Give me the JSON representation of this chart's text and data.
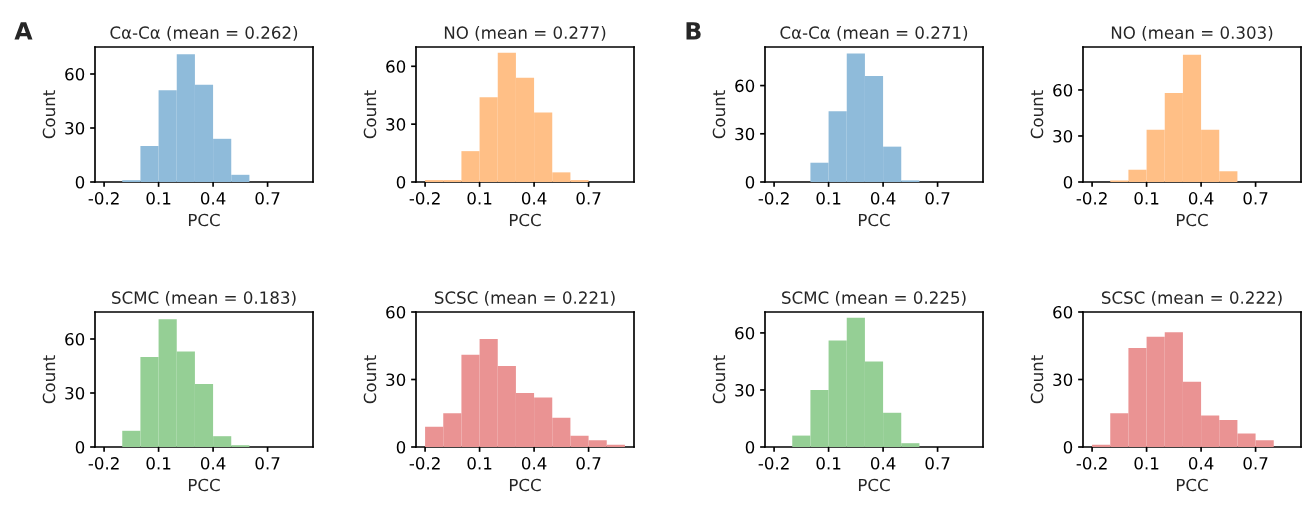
{
  "chart_data": [
    {
      "type": "histogram",
      "title": "Cα-Cα (mean = 0.262)",
      "xlabel": "PCC",
      "ylabel": "Count",
      "annotations": [
        "A"
      ],
      "color": "#8fbbda",
      "bins": [
        -0.1,
        0.0,
        0.1,
        0.2,
        0.3,
        0.4,
        0.5,
        0.6
      ],
      "values": [
        1,
        20,
        51,
        71,
        54,
        24,
        4
      ],
      "xlim": [
        -0.25,
        0.95
      ],
      "ylim": [
        0,
        75
      ],
      "xticks": [
        -0.2,
        0.1,
        0.4,
        0.7
      ],
      "yticks": [
        0,
        30,
        60
      ],
      "grid": false
    },
    {
      "type": "histogram",
      "title": "NO (mean = 0.277)",
      "xlabel": "PCC",
      "ylabel": "Count",
      "color": "#ffbf86",
      "bins": [
        -0.2,
        -0.1,
        0.0,
        0.1,
        0.2,
        0.3,
        0.4,
        0.5,
        0.6,
        0.7
      ],
      "values": [
        1,
        1,
        16,
        44,
        67,
        54,
        36,
        5,
        1
      ],
      "xlim": [
        -0.25,
        0.95
      ],
      "ylim": [
        0,
        70
      ],
      "xticks": [
        -0.2,
        0.1,
        0.4,
        0.7
      ],
      "yticks": [
        0,
        30,
        60
      ],
      "grid": false
    },
    {
      "type": "histogram",
      "title": "Cα-Cα (mean = 0.271)",
      "xlabel": "PCC",
      "ylabel": "Count",
      "annotations": [
        "B"
      ],
      "color": "#8fbbda",
      "bins": [
        0.0,
        0.1,
        0.2,
        0.3,
        0.4,
        0.5,
        0.6
      ],
      "values": [
        12,
        44,
        80,
        66,
        22,
        1
      ],
      "xlim": [
        -0.25,
        0.95
      ],
      "ylim": [
        0,
        84
      ],
      "xticks": [
        -0.2,
        0.1,
        0.4,
        0.7
      ],
      "yticks": [
        0,
        30,
        60
      ],
      "grid": false
    },
    {
      "type": "histogram",
      "title": "NO (mean = 0.303)",
      "xlabel": "PCC",
      "ylabel": "Count",
      "color": "#ffbf86",
      "bins": [
        -0.1,
        0.0,
        0.1,
        0.2,
        0.3,
        0.4,
        0.5,
        0.6
      ],
      "values": [
        1,
        8,
        34,
        58,
        83,
        34,
        7
      ],
      "xlim": [
        -0.25,
        0.95
      ],
      "ylim": [
        0,
        88
      ],
      "xticks": [
        -0.2,
        0.1,
        0.4,
        0.7
      ],
      "yticks": [
        0,
        30,
        60
      ],
      "grid": false
    },
    {
      "type": "histogram",
      "title": "SCMC (mean = 0.183)",
      "xlabel": "PCC",
      "ylabel": "Count",
      "color": "#95cf95",
      "bins": [
        -0.1,
        0.0,
        0.1,
        0.2,
        0.3,
        0.4,
        0.5,
        0.6
      ],
      "values": [
        9,
        50,
        71,
        53,
        35,
        6,
        1
      ],
      "xlim": [
        -0.25,
        0.95
      ],
      "ylim": [
        0,
        75
      ],
      "xticks": [
        -0.2,
        0.1,
        0.4,
        0.7
      ],
      "yticks": [
        0,
        30,
        60
      ],
      "grid": false
    },
    {
      "type": "histogram",
      "title": "SCSC (mean = 0.221)",
      "xlabel": "PCC",
      "ylabel": "Count",
      "color": "#ea9393",
      "bins": [
        -0.2,
        -0.1,
        0.0,
        0.1,
        0.2,
        0.3,
        0.4,
        0.5,
        0.6,
        0.7,
        0.8,
        0.9
      ],
      "values": [
        9,
        15,
        41,
        48,
        36,
        24,
        22,
        13,
        5,
        3,
        1
      ],
      "xlim": [
        -0.25,
        0.95
      ],
      "ylim": [
        0,
        60
      ],
      "xticks": [
        -0.2,
        0.1,
        0.4,
        0.7
      ],
      "yticks": [
        0,
        30,
        60
      ],
      "grid": false
    },
    {
      "type": "histogram",
      "title": "SCMC (mean = 0.225)",
      "xlabel": "PCC",
      "ylabel": "Count",
      "color": "#95cf95",
      "bins": [
        -0.1,
        0.0,
        0.1,
        0.2,
        0.3,
        0.4,
        0.5,
        0.6
      ],
      "values": [
        6,
        30,
        56,
        68,
        45,
        18,
        2
      ],
      "xlim": [
        -0.25,
        0.95
      ],
      "ylim": [
        0,
        71
      ],
      "xticks": [
        -0.2,
        0.1,
        0.4,
        0.7
      ],
      "yticks": [
        0,
        30,
        60
      ],
      "grid": false
    },
    {
      "type": "histogram",
      "title": "SCSC (mean = 0.222)",
      "xlabel": "PCC",
      "ylabel": "Count",
      "color": "#ea9393",
      "bins": [
        -0.2,
        -0.1,
        0.0,
        0.1,
        0.2,
        0.3,
        0.4,
        0.5,
        0.6,
        0.7,
        0.8
      ],
      "values": [
        1,
        15,
        44,
        49,
        51,
        29,
        14,
        12,
        6,
        3
      ],
      "xlim": [
        -0.25,
        0.95
      ],
      "ylim": [
        0,
        60
      ],
      "xticks": [
        -0.2,
        0.1,
        0.4,
        0.7
      ],
      "yticks": [
        0,
        30,
        60
      ],
      "grid": false
    }
  ]
}
